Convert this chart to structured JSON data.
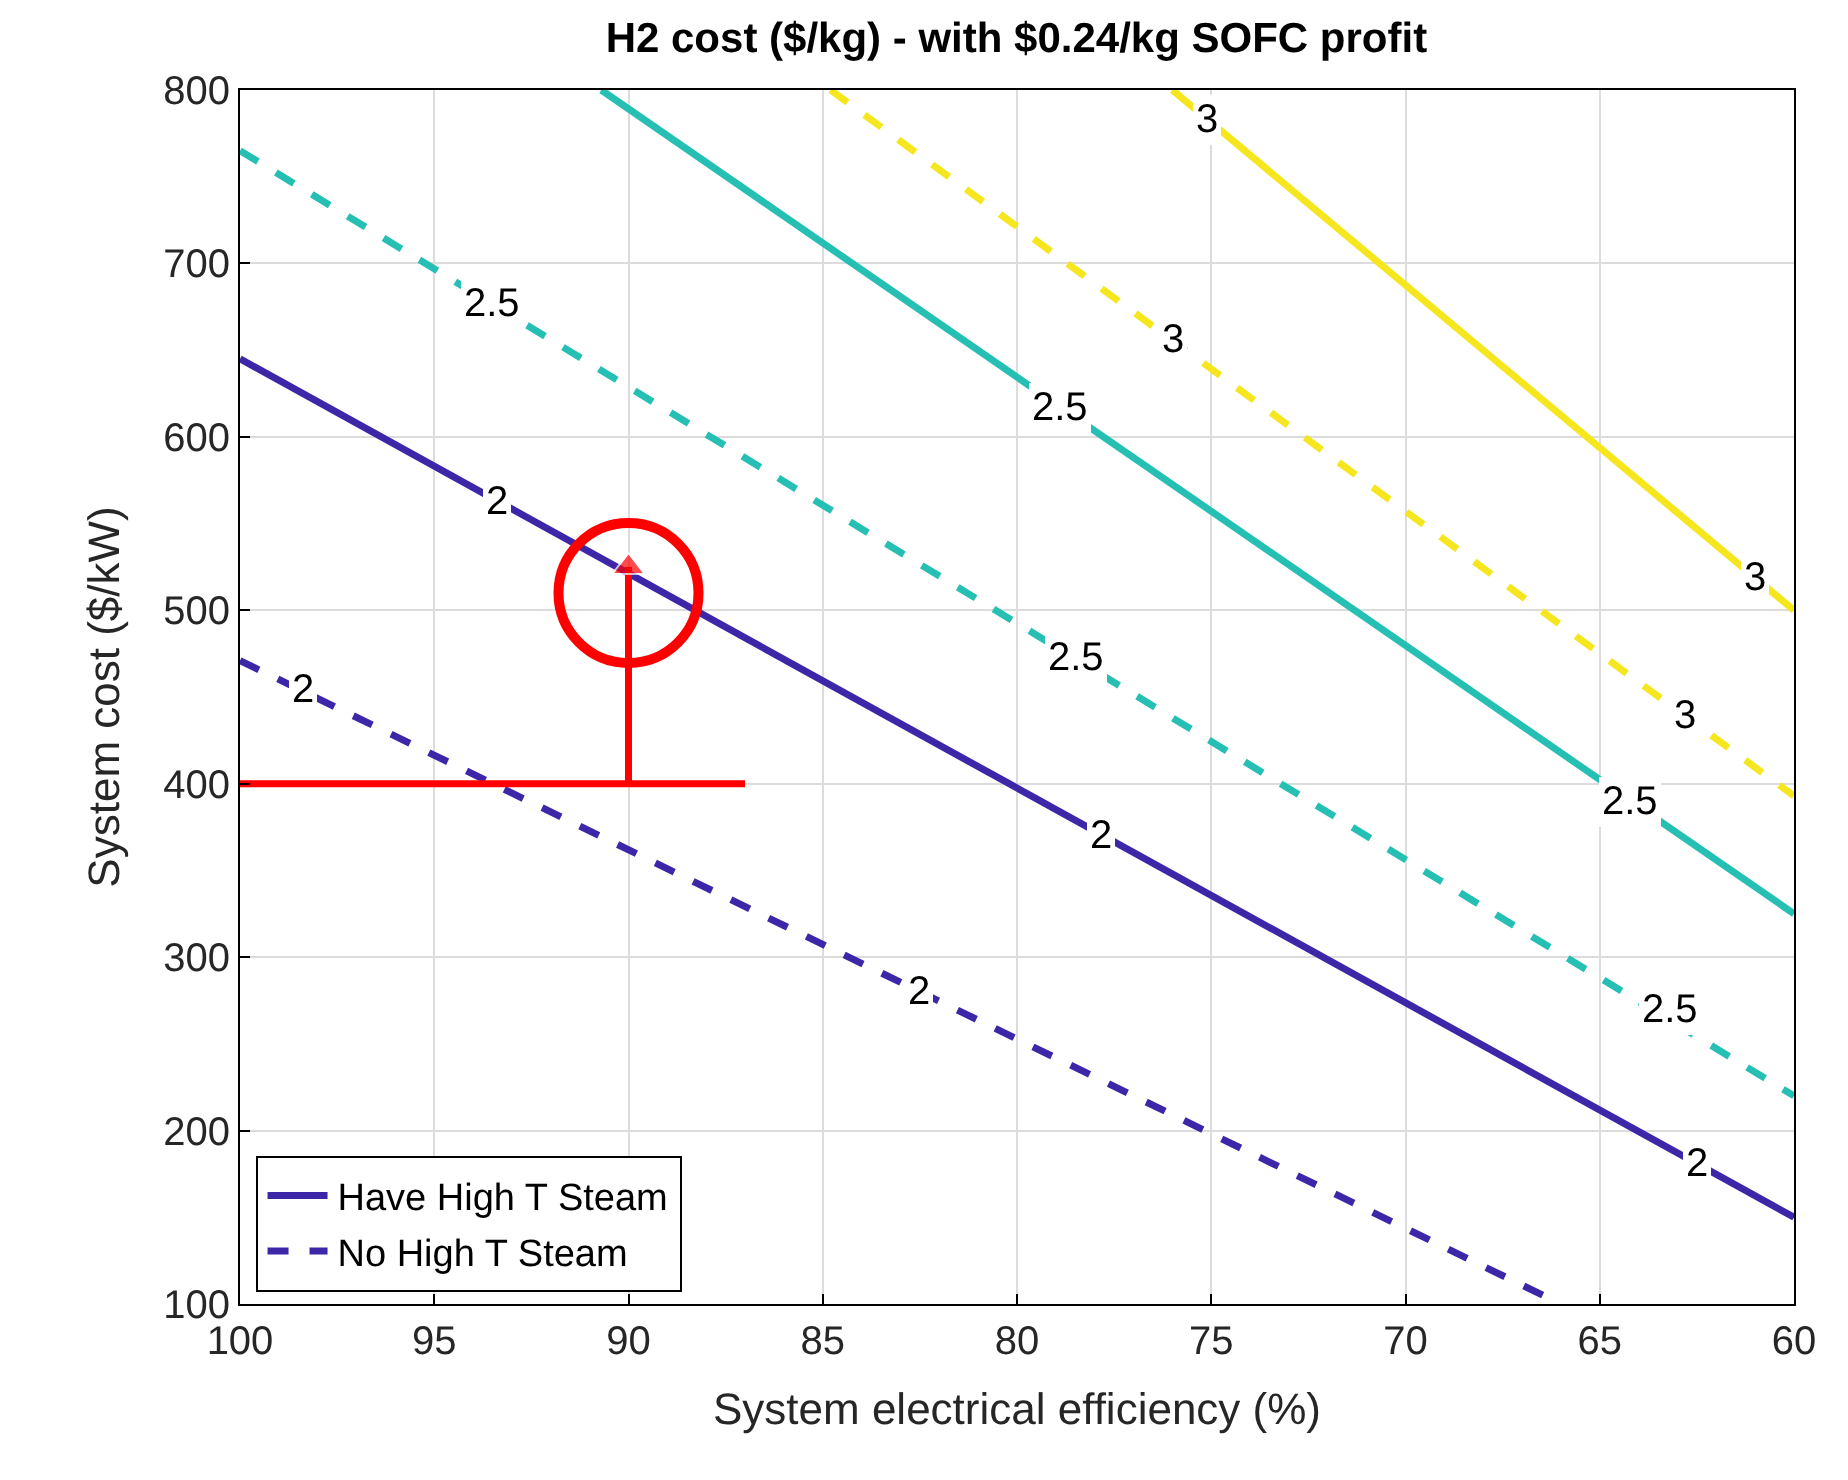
{
  "chart_data": {
    "type": "line",
    "title": "H2 cost ($/kg) - with $0.24/kg SOFC profit",
    "xlabel": "System electrical efficiency (%)",
    "ylabel": "System cost ($/kW)",
    "xlim": [
      100,
      60
    ],
    "ylim": [
      100,
      800
    ],
    "xticks": [
      100,
      95,
      90,
      85,
      80,
      75,
      70,
      65,
      60
    ],
    "yticks": [
      100,
      200,
      300,
      400,
      500,
      600,
      700,
      800
    ],
    "grid": true,
    "legend": "bottom left",
    "series": [
      {
        "name": "Have High T Steam",
        "color": "#3e26a8",
        "x": [
          100,
          60
        ],
        "values": [
          645,
          150
        ],
        "line_style": "solid"
      },
      {
        "color": "#26bfb4",
        "x": [
          90.7,
          60
        ],
        "values": [
          800,
          325
        ],
        "line_style": "solid"
      },
      {
        "color": "#f5e61e",
        "x": [
          76.0,
          60
        ],
        "values": [
          800,
          500
        ],
        "line_style": "solid"
      },
      {
        "name": "No High T Steam",
        "color": "#3e26a8",
        "x": [
          100,
          66.0
        ],
        "values": [
          471,
          100
        ],
        "line_style": "dashed"
      },
      {
        "color": "#26bfb4",
        "x": [
          100,
          60
        ],
        "values": [
          765,
          220
        ],
        "line_style": "dashed"
      },
      {
        "color": "#f5e61e",
        "x": [
          84.8,
          60
        ],
        "values": [
          800,
          393
        ],
        "line_style": "dashed"
      },
      {
        "color": "#ff0000",
        "x": [
          100,
          87
        ],
        "values": [
          400,
          400
        ],
        "line_style": "solid"
      },
      {
        "color": "#ff0000",
        "x": [
          90,
          90
        ],
        "values": [
          400,
          525
        ],
        "line_style": "solid",
        "marker": "triangle"
      },
      {
        "type": "scatter",
        "color": "#ff0000",
        "x": [
          90
        ],
        "values": [
          510
        ],
        "marker": "circle"
      }
    ],
    "annotations": [
      {
        "text": "2",
        "x": 93.4,
        "y": 563
      },
      {
        "text": "2",
        "x": 77.85,
        "y": 370
      },
      {
        "text": "2",
        "x": 62.5,
        "y": 181
      },
      {
        "text": "2",
        "x": 98.4,
        "y": 454
      },
      {
        "text": "2",
        "x": 82.5,
        "y": 280
      },
      {
        "text": "2.5",
        "x": 93.5,
        "y": 677
      },
      {
        "text": "2.5",
        "x": 78.5,
        "y": 473
      },
      {
        "text": "2.5",
        "x": 63.2,
        "y": 270
      },
      {
        "text": "2.5",
        "x": 78.9,
        "y": 617
      },
      {
        "text": "2.5",
        "x": 64.2,
        "y": 390
      },
      {
        "text": "3",
        "x": 75.1,
        "y": 783
      },
      {
        "text": "3",
        "x": 61,
        "y": 519
      },
      {
        "text": "3",
        "x": 76.0,
        "y": 656
      },
      {
        "text": "3",
        "x": 62.8,
        "y": 439
      }
    ]
  }
}
